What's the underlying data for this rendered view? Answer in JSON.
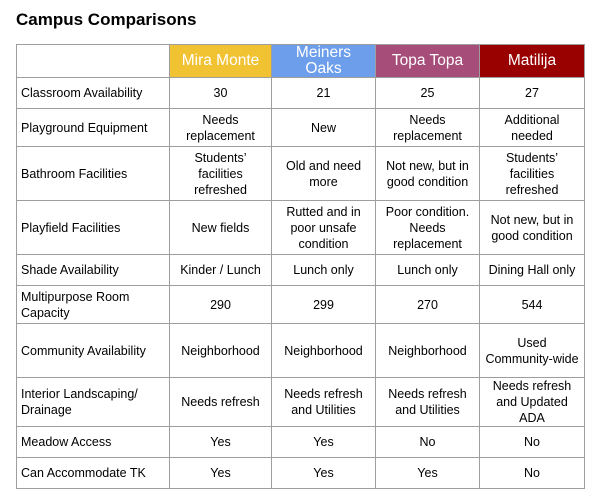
{
  "title": "Campus Comparisons",
  "colors": {
    "mira_monte": "#f1c232",
    "meiners_oaks": "#6d9eeb",
    "topa_topa": "#a64d79",
    "matilija": "#990000"
  },
  "columns": [
    "Mira Monte",
    "Meiners Oaks",
    "Topa Topa",
    "Matilija"
  ],
  "rows": [
    {
      "label": "Classroom Availability",
      "values": [
        "30",
        "21",
        "25",
        "27"
      ]
    },
    {
      "label": "Playground Equipment",
      "values": [
        "Needs replacement",
        "New",
        "Needs replacement",
        "Additional needed"
      ]
    },
    {
      "label": "Bathroom Facilities",
      "values": [
        "Students’ facilities refreshed",
        "Old and need more",
        "Not new, but in good condition",
        "Students’ facilities refreshed"
      ]
    },
    {
      "label": "Playfield Facilities",
      "values": [
        "New fields",
        "Rutted and in poor unsafe condition",
        "Poor condition. Needs replacement",
        "Not new, but in good condition"
      ]
    },
    {
      "label": "Shade Availability",
      "values": [
        "Kinder / Lunch",
        "Lunch only",
        "Lunch only",
        "Dining Hall only"
      ]
    },
    {
      "label": "Multipurpose Room Capacity",
      "values": [
        "290",
        "299",
        "270",
        "544"
      ]
    },
    {
      "label": "Community Availability",
      "values": [
        "Neighborhood",
        "Neighborhood",
        "Neighborhood",
        "Used Community-wide"
      ]
    },
    {
      "label": "Interior Landscaping/ Drainage",
      "values": [
        "Needs refresh",
        "Needs refresh and Utilities",
        "Needs refresh and Utilities",
        "Needs refresh and Updated ADA"
      ]
    },
    {
      "label": "Meadow Access",
      "values": [
        "Yes",
        "Yes",
        "No",
        "No"
      ]
    },
    {
      "label": "Can Accommodate TK",
      "values": [
        "Yes",
        "Yes",
        "Yes",
        "No"
      ]
    }
  ]
}
